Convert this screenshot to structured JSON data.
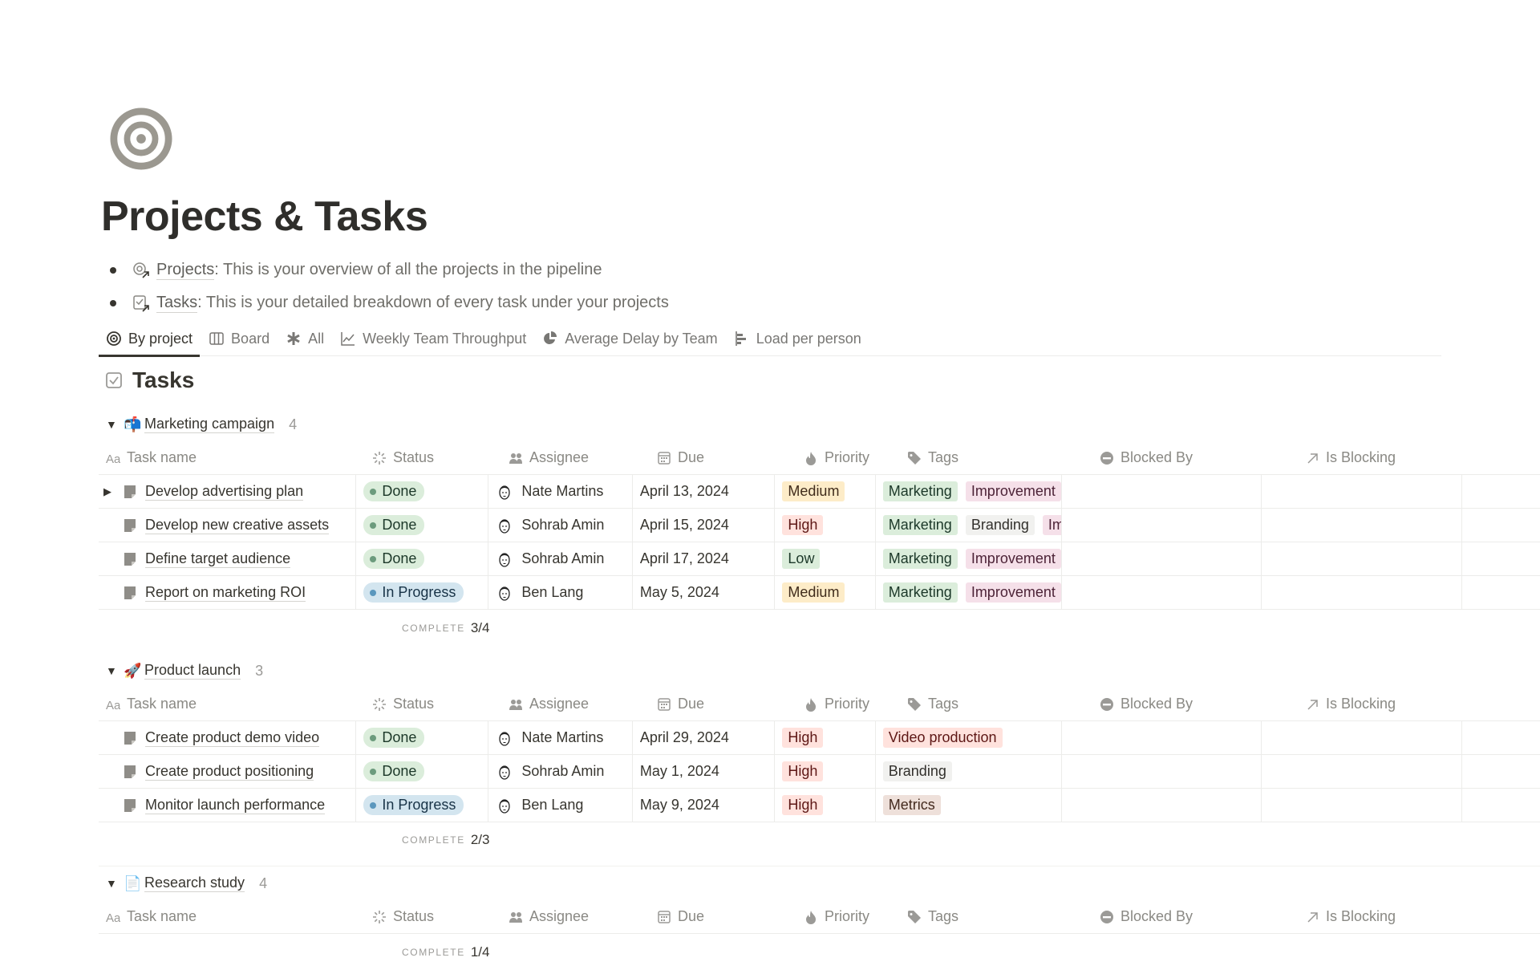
{
  "page": {
    "title": "Projects & Tasks",
    "icon": "target-icon"
  },
  "bullets": [
    {
      "icon": "projects-link-icon",
      "link": "Projects",
      "text": ": This is your overview of all the projects in the pipeline"
    },
    {
      "icon": "tasks-link-icon",
      "link": "Tasks",
      "text": ": This is your detailed breakdown of every task under your projects"
    }
  ],
  "tabs": [
    {
      "label": "By project",
      "icon": "target-icon",
      "active": true
    },
    {
      "label": "Board",
      "icon": "board-icon"
    },
    {
      "label": "All",
      "icon": "asterisk-icon"
    },
    {
      "label": "Weekly Team Throughput",
      "icon": "line-chart-icon"
    },
    {
      "label": "Average Delay by Team",
      "icon": "pie-chart-icon"
    },
    {
      "label": "Load per person",
      "icon": "bar-chart-icon"
    }
  ],
  "database": {
    "title": "Tasks",
    "icon": "checkbox-icon"
  },
  "columns": [
    {
      "label": "Task name",
      "icon": "text-icon"
    },
    {
      "label": "Status",
      "icon": "status-icon"
    },
    {
      "label": "Assignee",
      "icon": "people-icon"
    },
    {
      "label": "Due",
      "icon": "calendar-icon"
    },
    {
      "label": "Priority",
      "icon": "flame-icon"
    },
    {
      "label": "Tags",
      "icon": "tag-icon"
    },
    {
      "label": "Blocked By",
      "icon": "blocked-icon"
    },
    {
      "label": "Is Blocking",
      "icon": "arrow-up-right-icon"
    }
  ],
  "colors": {
    "Done": {
      "bg": "#dbeddb",
      "dot": "#6c9b7d",
      "fg": "#1c3829"
    },
    "In Progress": {
      "bg": "#d3e5ef",
      "dot": "#5b97bd",
      "fg": "#183347"
    },
    "Medium": {
      "bg": "#fdecc8",
      "fg": "#402c1b"
    },
    "High": {
      "bg": "#ffe2dd",
      "fg": "#5d1715"
    },
    "Low": {
      "bg": "#dbeddb",
      "fg": "#1c3829"
    },
    "Marketing": {
      "bg": "#dbeddb",
      "fg": "#1c3829"
    },
    "Improvement": {
      "bg": "#f5e0e9",
      "fg": "#4c2337"
    },
    "Branding": {
      "bg": "#f1f1ef",
      "fg": "#32302c"
    },
    "Video production": {
      "bg": "#ffe2dd",
      "fg": "#5d1715"
    },
    "Metrics": {
      "bg": "#eee0da",
      "fg": "#442a1e"
    }
  },
  "complete_label": "COMPLETE",
  "groups": [
    {
      "emoji": "📬",
      "name": "Marketing campaign",
      "count": "4",
      "complete": "3/4",
      "tasks": [
        {
          "name": "Develop advertising plan",
          "expandable": true,
          "status": "Done",
          "assignee": "Nate Martins",
          "due": "April 13, 2024",
          "priority": "Medium",
          "tags": [
            "Marketing",
            "Improvement"
          ]
        },
        {
          "name": "Develop new creative assets",
          "status": "Done",
          "assignee": "Sohrab Amin",
          "due": "April 15, 2024",
          "priority": "High",
          "tags": [
            "Marketing",
            "Branding",
            "Improvement"
          ]
        },
        {
          "name": "Define target audience",
          "status": "Done",
          "assignee": "Sohrab Amin",
          "due": "April 17, 2024",
          "priority": "Low",
          "tags": [
            "Marketing",
            "Improvement"
          ]
        },
        {
          "name": "Report on marketing ROI",
          "status": "In Progress",
          "assignee": "Ben Lang",
          "due": "May 5, 2024",
          "priority": "Medium",
          "tags": [
            "Marketing",
            "Improvement"
          ]
        }
      ]
    },
    {
      "emoji": "🚀",
      "name": "Product launch",
      "count": "3",
      "complete": "2/3",
      "tasks": [
        {
          "name": "Create product demo video",
          "status": "Done",
          "assignee": "Nate Martins",
          "due": "April 29, 2024",
          "priority": "High",
          "tags": [
            "Video production"
          ]
        },
        {
          "name": "Create product positioning",
          "status": "Done",
          "assignee": "Sohrab Amin",
          "due": "May 1, 2024",
          "priority": "High",
          "tags": [
            "Branding"
          ]
        },
        {
          "name": "Monitor launch performance",
          "status": "In Progress",
          "assignee": "Ben Lang",
          "due": "May 9, 2024",
          "priority": "High",
          "tags": [
            "Metrics"
          ]
        }
      ]
    },
    {
      "emoji": "📄",
      "name": "Research study",
      "count": "4",
      "complete": "1/4",
      "tasks": []
    }
  ]
}
